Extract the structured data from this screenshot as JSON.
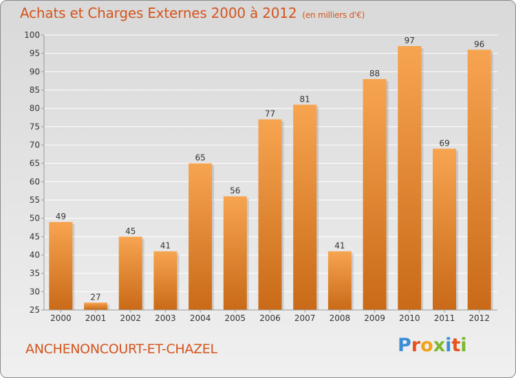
{
  "header": {
    "title": "Achats et Charges Externes 2000 à 2012",
    "unit": "(en milliers d'€)"
  },
  "footer": {
    "city": "ANCHENONCOURT-ET-CHAZEL",
    "logo_text": "Proxiti",
    "logo_colors": [
      "#3a8ed8",
      "#e8521d",
      "#f0a21a",
      "#7ab82e",
      "#3a8ed8",
      "#e8521d",
      "#7ab82e"
    ]
  },
  "colors": {
    "bar_light": "#f7a450",
    "bar_dark": "#c96a18",
    "text": "#333333",
    "accent": "#d4541c"
  },
  "chart_data": {
    "type": "bar",
    "title": "Achats et Charges Externes 2000 à 2012",
    "subtitle": "(en milliers d'€)",
    "categories": [
      "2000",
      "2001",
      "2002",
      "2003",
      "2004",
      "2005",
      "2006",
      "2007",
      "2008",
      "2009",
      "2010",
      "2011",
      "2012"
    ],
    "values": [
      49,
      27,
      45,
      41,
      65,
      56,
      77,
      81,
      41,
      88,
      97,
      69,
      96
    ],
    "ylim": [
      25,
      100
    ],
    "yticks": [
      25,
      30,
      35,
      40,
      45,
      50,
      55,
      60,
      65,
      70,
      75,
      80,
      85,
      90,
      95,
      100
    ],
    "grid": true
  }
}
